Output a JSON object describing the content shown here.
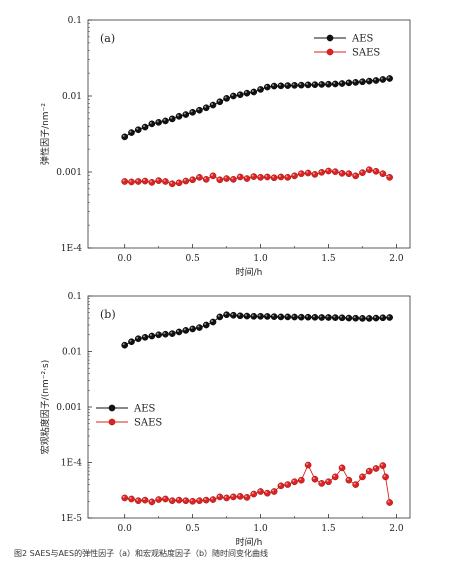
{
  "caption": "图2 SAES与AES的弹性因子（a）和宏观粘度因子（b）随时间变化曲线",
  "colors": {
    "aes": "#111111",
    "saes": "#dd2222",
    "axis": "#333333"
  },
  "chart_data": [
    {
      "type": "line",
      "panel": "(a)",
      "xlabel": "时间/h",
      "ylabel": "弹性因子/nm⁻²",
      "xlim": [
        -0.27,
        2.1
      ],
      "ylim": [
        0.0001,
        0.1
      ],
      "yscale": "log",
      "xticks": [
        "0.0",
        "0.5",
        "1.0",
        "1.5",
        "2.0"
      ],
      "yticks": [
        "0.1",
        "0.01",
        "0.001",
        "1E-4"
      ],
      "legend": "top-right",
      "series": [
        {
          "name": "AES",
          "x": [
            0.0,
            0.05,
            0.1,
            0.15,
            0.2,
            0.25,
            0.3,
            0.35,
            0.4,
            0.45,
            0.5,
            0.55,
            0.6,
            0.65,
            0.7,
            0.75,
            0.8,
            0.85,
            0.9,
            0.95,
            1.0,
            1.05,
            1.1,
            1.15,
            1.2,
            1.25,
            1.3,
            1.35,
            1.4,
            1.45,
            1.5,
            1.55,
            1.6,
            1.65,
            1.7,
            1.75,
            1.8,
            1.85,
            1.9,
            1.95
          ],
          "y": [
            0.0029,
            0.0033,
            0.0036,
            0.0039,
            0.0043,
            0.0045,
            0.0047,
            0.005,
            0.0054,
            0.0057,
            0.0061,
            0.0065,
            0.007,
            0.0076,
            0.0084,
            0.0093,
            0.01,
            0.0104,
            0.0109,
            0.0113,
            0.0122,
            0.0131,
            0.0135,
            0.0136,
            0.0137,
            0.0138,
            0.0139,
            0.014,
            0.0141,
            0.0142,
            0.0143,
            0.0144,
            0.0146,
            0.0149,
            0.0151,
            0.0154,
            0.0157,
            0.016,
            0.0165,
            0.017
          ]
        },
        {
          "name": "SAES",
          "x": [
            0.0,
            0.05,
            0.1,
            0.15,
            0.2,
            0.25,
            0.3,
            0.35,
            0.4,
            0.45,
            0.5,
            0.55,
            0.6,
            0.65,
            0.7,
            0.75,
            0.8,
            0.85,
            0.9,
            0.95,
            1.0,
            1.05,
            1.1,
            1.15,
            1.2,
            1.25,
            1.3,
            1.35,
            1.4,
            1.45,
            1.5,
            1.55,
            1.6,
            1.65,
            1.7,
            1.75,
            1.8,
            1.85,
            1.9,
            1.95
          ],
          "y": [
            0.00075,
            0.00074,
            0.00075,
            0.00076,
            0.00073,
            0.00077,
            0.00075,
            0.0007,
            0.00072,
            0.00076,
            0.00079,
            0.00085,
            0.0008,
            0.00089,
            0.00079,
            0.00082,
            0.0008,
            0.00086,
            0.00082,
            0.00087,
            0.00085,
            0.00086,
            0.00084,
            0.00086,
            0.00085,
            0.00089,
            0.00095,
            0.00097,
            0.00093,
            0.00099,
            0.00103,
            0.00101,
            0.00096,
            0.00095,
            0.00089,
            0.00098,
            0.00107,
            0.00102,
            0.00095,
            0.00085
          ]
        }
      ]
    },
    {
      "type": "line",
      "panel": "(b)",
      "xlabel": "时间/h",
      "ylabel": "宏观粘度因子/(nm⁻²·s)",
      "xlim": [
        -0.27,
        2.1
      ],
      "ylim": [
        1e-05,
        0.1
      ],
      "yscale": "log",
      "xticks": [
        "0.0",
        "0.5",
        "1.0",
        "1.5",
        "2.0"
      ],
      "yticks": [
        "0.1",
        "0.01",
        "0.001",
        "1E-4",
        "1E-5"
      ],
      "legend": "left",
      "series": [
        {
          "name": "AES",
          "x": [
            0.0,
            0.05,
            0.1,
            0.15,
            0.2,
            0.25,
            0.3,
            0.35,
            0.4,
            0.45,
            0.5,
            0.55,
            0.6,
            0.65,
            0.7,
            0.75,
            0.8,
            0.85,
            0.9,
            0.95,
            1.0,
            1.05,
            1.1,
            1.15,
            1.2,
            1.25,
            1.3,
            1.35,
            1.4,
            1.45,
            1.5,
            1.55,
            1.6,
            1.65,
            1.7,
            1.75,
            1.8,
            1.85,
            1.9,
            1.95
          ],
          "y": [
            0.013,
            0.015,
            0.017,
            0.018,
            0.019,
            0.02,
            0.0205,
            0.021,
            0.0225,
            0.024,
            0.0255,
            0.027,
            0.03,
            0.034,
            0.042,
            0.046,
            0.045,
            0.044,
            0.0435,
            0.043,
            0.043,
            0.0428,
            0.0425,
            0.042,
            0.042,
            0.0418,
            0.0415,
            0.0415,
            0.0413,
            0.041,
            0.041,
            0.0408,
            0.0405,
            0.04,
            0.0398,
            0.0395,
            0.0395,
            0.04,
            0.0405,
            0.041
          ]
        },
        {
          "name": "SAES",
          "x": [
            0.0,
            0.05,
            0.1,
            0.15,
            0.2,
            0.25,
            0.3,
            0.35,
            0.4,
            0.45,
            0.5,
            0.55,
            0.6,
            0.65,
            0.7,
            0.75,
            0.8,
            0.85,
            0.9,
            0.95,
            1.0,
            1.05,
            1.1,
            1.15,
            1.2,
            1.25,
            1.3,
            1.35,
            1.4,
            1.45,
            1.5,
            1.55,
            1.6,
            1.65,
            1.7,
            1.75,
            1.8,
            1.85,
            1.9,
            1.92,
            1.95
          ],
          "y": [
            2.3e-05,
            2.2e-05,
            2.05e-05,
            2.1e-05,
            1.95e-05,
            2.15e-05,
            2.2e-05,
            2.05e-05,
            2.1e-05,
            2.05e-05,
            2e-05,
            2.05e-05,
            2.1e-05,
            2.15e-05,
            2.4e-05,
            2.3e-05,
            2.4e-05,
            2.45e-05,
            2.35e-05,
            2.7e-05,
            3e-05,
            2.8e-05,
            3e-05,
            3.8e-05,
            4e-05,
            4.5e-05,
            4.8e-05,
            9e-05,
            5e-05,
            4.2e-05,
            4.5e-05,
            5.5e-05,
            8e-05,
            4.8e-05,
            4e-05,
            5.5e-05,
            7e-05,
            7.8e-05,
            8.8e-05,
            5.5e-05,
            1.9e-05
          ]
        }
      ]
    }
  ]
}
